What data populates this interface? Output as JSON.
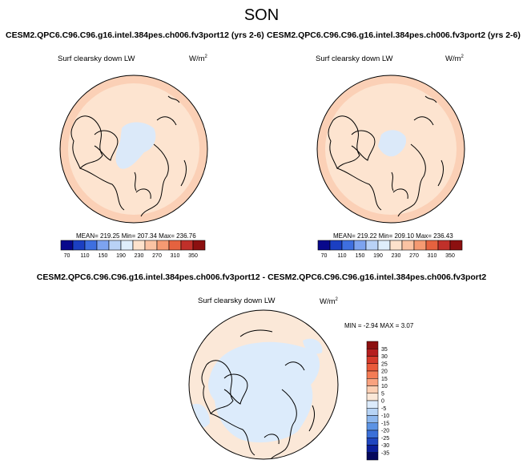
{
  "season": "SON",
  "panels": [
    {
      "title": "CESM2.QPC6.C96.C96.g16.intel.384pes.ch006.fv3port12 (yrs 2-6)",
      "variable": "Surf clearsky down LW",
      "units_base": "W/m",
      "units_exp": "2",
      "stats_text": "MEAN= 219.25  Min= 207.34  Max= 236.76"
    },
    {
      "title": "CESM2.QPC6.C96.C96.g16.intel.384pes.ch006.fv3port2 (yrs 2-6)",
      "variable": "Surf clearsky down LW",
      "units_base": "W/m",
      "units_exp": "2",
      "stats_text": "MEAN= 219.22  Min= 209.10  Max= 236.43"
    }
  ],
  "colorbar": {
    "labels": [
      "70",
      "110",
      "150",
      "190",
      "230",
      "270",
      "310",
      "350"
    ],
    "colors": [
      "#08088c",
      "#1b3fc2",
      "#3e6fe0",
      "#7da3ef",
      "#b9d2f6",
      "#dfeefb",
      "#fde2cc",
      "#fbc3a3",
      "#f59a72",
      "#e5623f",
      "#c0302a",
      "#8c1010"
    ]
  },
  "diff": {
    "title": "CESM2.QPC6.C96.C96.g16.intel.384pes.ch006.fv3port12 - CESM2.QPC6.C96.C96.g16.intel.384pes.ch006.fv3port2",
    "variable": "Surf clearsky down LW",
    "units_base": "W/m",
    "units_exp": "2",
    "stats_text": "MIN = -2.94  MAX =  3.07",
    "legend_labels": [
      "35",
      "30",
      "25",
      "20",
      "15",
      "10",
      "5",
      "0",
      "-5",
      "-10",
      "-15",
      "-20",
      "-25",
      "-30",
      "-35"
    ],
    "legend_colors": [
      "#8c1010",
      "#b51e1e",
      "#d63a2a",
      "#ea5a3a",
      "#f47c55",
      "#f9a27f",
      "#fccfb3",
      "#fbe8d8",
      "#dcebfb",
      "#b7d4f5",
      "#8db7ee",
      "#5c93e4",
      "#3a6fd8",
      "#1f46c0",
      "#0b1f9b",
      "#05085c"
    ]
  },
  "colors": {
    "map_ocean_warm": "#fde4d0",
    "map_rim": "#fbd0b6",
    "map_cool": "#dbe9f9"
  }
}
